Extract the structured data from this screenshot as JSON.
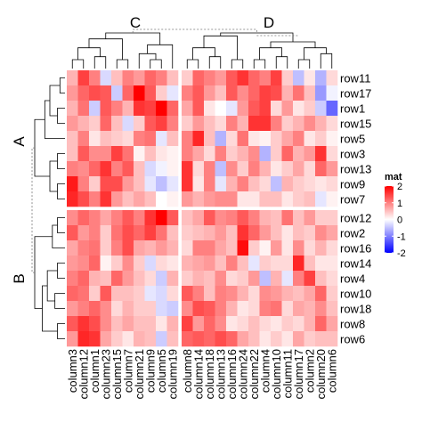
{
  "chart_data": {
    "type": "heatmap",
    "title": "",
    "column_groups": [
      "C",
      "D"
    ],
    "row_groups": [
      "A",
      "B"
    ],
    "columns": [
      "column3",
      "column12",
      "column1",
      "column23",
      "column15",
      "column7",
      "column21",
      "column9",
      "column5",
      "column19",
      "column8",
      "column14",
      "column18",
      "column13",
      "column16",
      "column24",
      "column22",
      "column4",
      "column10",
      "column11",
      "column17",
      "column2",
      "column20",
      "column6"
    ],
    "column_split": [
      10,
      14
    ],
    "rows": [
      "row11",
      "row17",
      "row1",
      "row15",
      "row5",
      "row3",
      "row13",
      "row9",
      "row7",
      "row12",
      "row2",
      "row16",
      "row14",
      "row4",
      "row10",
      "row18",
      "row8",
      "row6"
    ],
    "row_split": [
      9,
      9
    ],
    "values": [
      [
        0.6,
        1.5,
        1.0,
        -0.3,
        0.5,
        1.0,
        0.8,
        1.2,
        1.0,
        0.5,
        0.4,
        1.2,
        1.0,
        0.8,
        1.3,
        1.6,
        1.2,
        1.0,
        1.5,
        0.4,
        -0.5,
        0.2,
        -0.6,
        0.3
      ],
      [
        0.8,
        1.2,
        1.4,
        1.3,
        -0.4,
        1.2,
        2.0,
        1.3,
        0.4,
        -0.2,
        1.0,
        1.3,
        0.8,
        0.5,
        1.3,
        0.9,
        1.2,
        1.5,
        1.4,
        0.6,
        1.1,
        0.5,
        -0.8,
        -0.1
      ],
      [
        0.6,
        1.1,
        -0.4,
        1.3,
        1.0,
        0.6,
        1.6,
        1.5,
        2.0,
        1.2,
        0.7,
        1.3,
        0.2,
        0.0,
        -0.2,
        0.8,
        1.3,
        1.5,
        0.3,
        0.8,
        0.2,
        0.4,
        -0.4,
        -1.2
      ],
      [
        0.8,
        0.6,
        0.4,
        1.2,
        0.5,
        -0.3,
        0.4,
        1.3,
        1.5,
        1.0,
        0.4,
        0.8,
        0.5,
        0.3,
        1.0,
        0.6,
        1.6,
        1.6,
        1.0,
        0.4,
        0.6,
        0.9,
        0.6,
        0.3
      ],
      [
        0.5,
        1.0,
        0.2,
        0.5,
        0.4,
        0.3,
        1.0,
        1.1,
        -0.2,
        0.5,
        1.0,
        1.7,
        0.5,
        -0.6,
        0.3,
        1.1,
        0.2,
        0.1,
        0.4,
        0.7,
        1.0,
        0.2,
        0.4,
        0.1
      ],
      [
        0.5,
        1.3,
        0.9,
        0.9,
        1.5,
        1.1,
        0.1,
        0.5,
        0.2,
        0.1,
        1.0,
        0.7,
        0.3,
        1.0,
        0.4,
        0.6,
        0.9,
        -0.6,
        0.4,
        1.2,
        0.6,
        0.8,
        1.6,
        0.3
      ],
      [
        1.0,
        0.9,
        1.2,
        1.6,
        1.0,
        1.3,
        0.5,
        -0.3,
        -0.1,
        0.1,
        1.6,
        0.3,
        1.0,
        -0.5,
        0.9,
        0.4,
        1.0,
        0.6,
        0.2,
        0.4,
        0.7,
        0.3,
        1.2,
        0.8
      ],
      [
        1.8,
        1.0,
        0.4,
        1.4,
        1.4,
        0.8,
        0.5,
        -0.2,
        -0.5,
        -0.2,
        1.6,
        0.2,
        1.0,
        -0.2,
        0.6,
        1.0,
        0.5,
        0.3,
        -0.5,
        0.6,
        0.4,
        0.3,
        0.2,
        0.3
      ],
      [
        1.7,
        1.4,
        1.0,
        1.6,
        0.8,
        0.5,
        0.7,
        0.5,
        0.0,
        0.1,
        0.8,
        0.6,
        0.8,
        0.9,
        0.9,
        0.2,
        0.2,
        0.5,
        0.5,
        0.2,
        0.4,
        0.5,
        -0.2,
        0.1
      ],
      [
        0.9,
        1.2,
        1.0,
        0.7,
        1.0,
        1.3,
        1.0,
        1.6,
        2.0,
        1.3,
        0.5,
        0.7,
        1.3,
        0.9,
        1.0,
        1.3,
        1.0,
        0.6,
        0.5,
        1.1,
        0.5,
        0.8,
        0.4,
        0.4
      ],
      [
        1.3,
        0.8,
        1.0,
        0.4,
        1.1,
        1.4,
        1.2,
        1.5,
        1.1,
        0.5,
        0.4,
        0.5,
        0.6,
        0.8,
        0.5,
        1.6,
        1.2,
        0.8,
        0.5,
        0.2,
        0.5,
        0.4,
        0.9,
        0.7
      ],
      [
        0.7,
        1.0,
        1.1,
        0.4,
        1.0,
        1.4,
        0.7,
        0.6,
        0.8,
        0.6,
        0.3,
        1.0,
        1.0,
        0.7,
        0.5,
        1.9,
        0.4,
        0.1,
        0.8,
        0.2,
        0.9,
        0.3,
        0.6,
        0.3
      ],
      [
        0.8,
        0.9,
        1.2,
        0.1,
        0.4,
        0.9,
        0.4,
        -0.3,
        0.3,
        0.2,
        0.6,
        0.7,
        0.8,
        0.5,
        1.0,
        0.5,
        -0.2,
        0.4,
        0.3,
        0.3,
        1.7,
        0.5,
        0.2,
        0.2
      ],
      [
        1.0,
        1.2,
        0.6,
        0.5,
        1.2,
        0.8,
        0.5,
        0.3,
        -0.4,
        0.6,
        0.4,
        0.6,
        0.5,
        0.9,
        0.3,
        0.4,
        0.8,
        -0.5,
        0.6,
        -0.2,
        1.0,
        1.5,
        0.5,
        0.3
      ],
      [
        1.2,
        1.1,
        0.4,
        1.3,
        0.5,
        0.5,
        0.4,
        -0.2,
        -0.3,
        0.3,
        1.3,
        1.0,
        0.5,
        1.0,
        0.9,
        0.6,
        0.3,
        0.9,
        0.8,
        0.6,
        0.5,
        0.7,
        1.2,
        0.4
      ],
      [
        0.8,
        1.0,
        1.2,
        0.9,
        0.3,
        0.6,
        0.4,
        0.4,
        -0.3,
        -0.4,
        0.9,
        1.4,
        1.3,
        1.0,
        0.6,
        0.2,
        0.3,
        1.0,
        1.1,
        0.3,
        0.7,
        0.6,
        0.9,
        0.5
      ],
      [
        1.3,
        1.6,
        1.4,
        0.9,
        0.5,
        0.7,
        0.5,
        0.5,
        0.2,
        0.6,
        1.5,
        0.8,
        1.2,
        0.9,
        0.2,
        0.3,
        0.5,
        0.3,
        0.2,
        0.4,
        0.3,
        0.6,
        1.2,
        0.7
      ],
      [
        0.8,
        1.7,
        1.6,
        0.7,
        0.4,
        0.2,
        0.6,
        0.5,
        -0.4,
        0.5,
        1.2,
        1.3,
        1.2,
        1.4,
        1.2,
        0.7,
        0.5,
        0.2,
        0.4,
        0.2,
        0.7,
        0.4,
        0.5,
        0.5
      ]
    ],
    "legend": {
      "title": "mat",
      "ticks": [
        2,
        1,
        0,
        -1,
        -2
      ],
      "tick_labels": [
        "2",
        "1",
        "0",
        "-1",
        "-2"
      ],
      "range": [
        -2,
        2
      ],
      "low_color": "#0000ff",
      "mid_color": "#ffffff",
      "high_color": "#ff0000",
      "placement": "right"
    }
  }
}
